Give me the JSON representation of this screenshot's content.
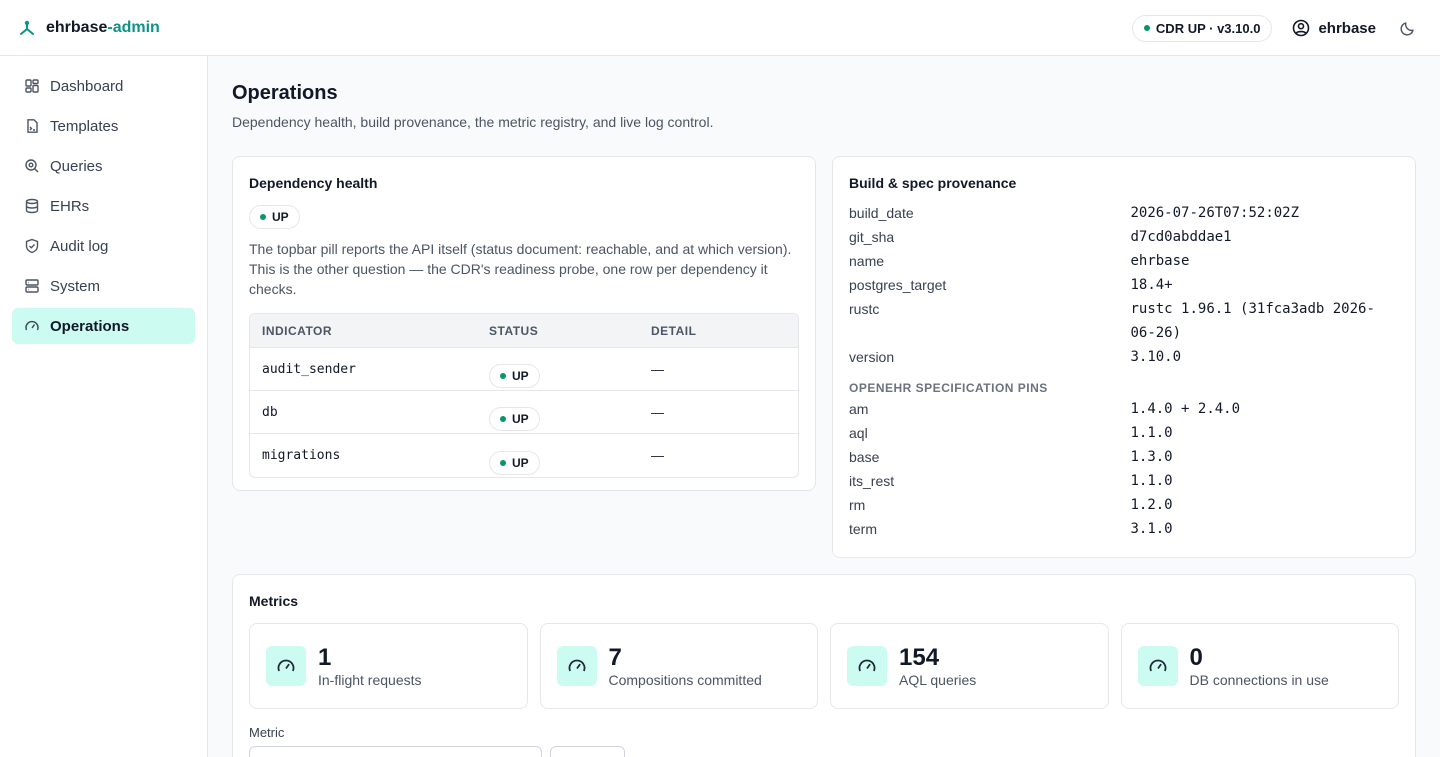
{
  "app": {
    "name_prefix": "ehrbase",
    "name_suffix": "-admin"
  },
  "topbar": {
    "status_pill": "CDR UP · v3.10.0",
    "user": "ehrbase",
    "accent": "#0d9488",
    "status_color": "#059669"
  },
  "sidebar": {
    "items": [
      {
        "label": "Dashboard",
        "icon": "dashboard-icon"
      },
      {
        "label": "Templates",
        "icon": "template-icon"
      },
      {
        "label": "Queries",
        "icon": "query-icon"
      },
      {
        "label": "EHRs",
        "icon": "database-icon"
      },
      {
        "label": "Audit log",
        "icon": "shield-check-icon"
      },
      {
        "label": "System",
        "icon": "server-icon"
      },
      {
        "label": "Operations",
        "icon": "gauge-icon",
        "active": true
      }
    ]
  },
  "page": {
    "title": "Operations",
    "subtitle": "Dependency health, build provenance, the metric registry, and live log control."
  },
  "dependency": {
    "title": "Dependency health",
    "status": "UP",
    "description": "The topbar pill reports the API itself (status document: reachable, and at which version). This is the other question — the CDR's readiness probe, one row per dependency it checks.",
    "columns": [
      "INDICATOR",
      "STATUS",
      "DETAIL"
    ],
    "rows": [
      {
        "indicator": "audit_sender",
        "status": "UP",
        "detail": "—"
      },
      {
        "indicator": "db",
        "status": "UP",
        "detail": "—"
      },
      {
        "indicator": "migrations",
        "status": "UP",
        "detail": "—"
      }
    ]
  },
  "build": {
    "title": "Build & spec provenance",
    "fields": [
      {
        "key": "build_date",
        "value": "2026-07-26T07:52:02Z"
      },
      {
        "key": "git_sha",
        "value": "d7cd0abddae1"
      },
      {
        "key": "name",
        "value": "ehrbase"
      },
      {
        "key": "postgres_target",
        "value": "18.4+"
      },
      {
        "key": "rustc",
        "value": "rustc 1.96.1 (31fca3adb 2026-06-26)"
      },
      {
        "key": "version",
        "value": "3.10.0"
      }
    ],
    "pins_heading": "OPENEHR SPECIFICATION PINS",
    "pins": [
      {
        "key": "am",
        "value": "1.4.0 + 2.4.0"
      },
      {
        "key": "aql",
        "value": "1.1.0"
      },
      {
        "key": "base",
        "value": "1.3.0"
      },
      {
        "key": "its_rest",
        "value": "1.1.0"
      },
      {
        "key": "rm",
        "value": "1.2.0"
      },
      {
        "key": "term",
        "value": "3.1.0"
      }
    ]
  },
  "metrics": {
    "title": "Metrics",
    "cards": [
      {
        "value": "1",
        "label": "In-flight requests"
      },
      {
        "value": "7",
        "label": "Compositions committed"
      },
      {
        "value": "154",
        "label": "AQL queries"
      },
      {
        "value": "0",
        "label": "DB connections in use"
      }
    ],
    "metric_label": "Metric"
  }
}
